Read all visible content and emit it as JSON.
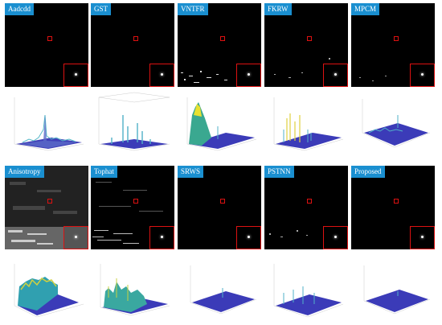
{
  "methods_row1": [
    "Aadcdd",
    "GST",
    "VNTFR",
    "FKRW",
    "MPCM"
  ],
  "methods_row2": [
    "Anisotropy",
    "Tophat",
    "SRWS",
    "PSTNN",
    "Proposed"
  ],
  "colors": {
    "label_bg": "#1a8fd0",
    "target_box": "#dd1111",
    "surface_low": "#3b3bb8",
    "surface_high": "#f0e030"
  }
}
